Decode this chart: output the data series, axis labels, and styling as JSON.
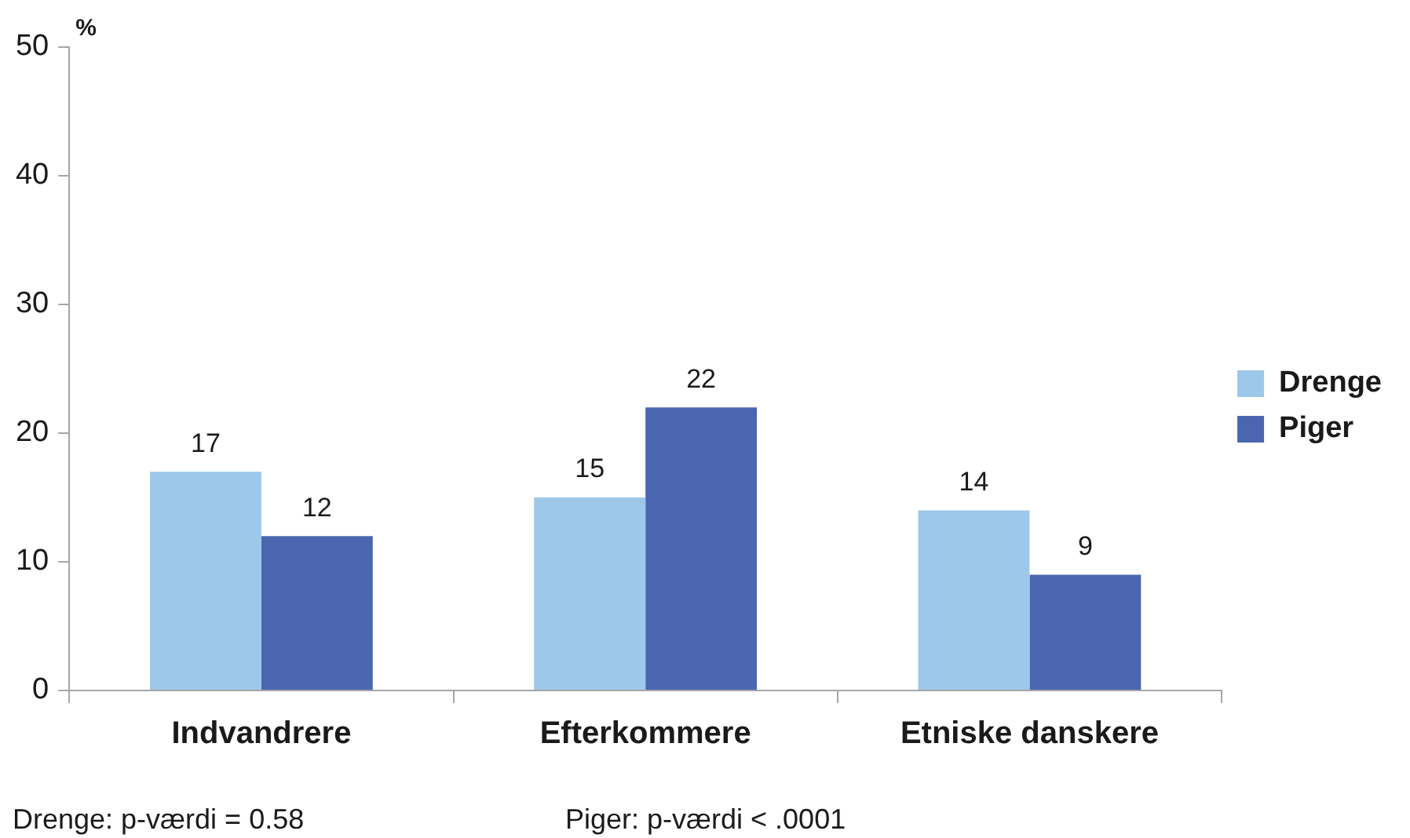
{
  "chart_data": {
    "type": "bar",
    "ylabel": "%",
    "categories": [
      "Indvandrere",
      "Efterkommere",
      "Etniske danskere"
    ],
    "series": [
      {
        "name": "Drenge",
        "color": "#9dc8ea",
        "values": [
          17,
          15,
          14
        ]
      },
      {
        "name": "Piger",
        "color": "#4a66b0",
        "values": [
          12,
          22,
          9
        ]
      }
    ],
    "ylim": [
      0,
      50
    ],
    "yticks": [
      0,
      10,
      20,
      30,
      40,
      50
    ],
    "grid": false,
    "legend": "right",
    "data_labels": true,
    "annotations": [
      "Drenge: p-værdi = 0.58",
      "Piger: p-værdi < .0001"
    ]
  }
}
